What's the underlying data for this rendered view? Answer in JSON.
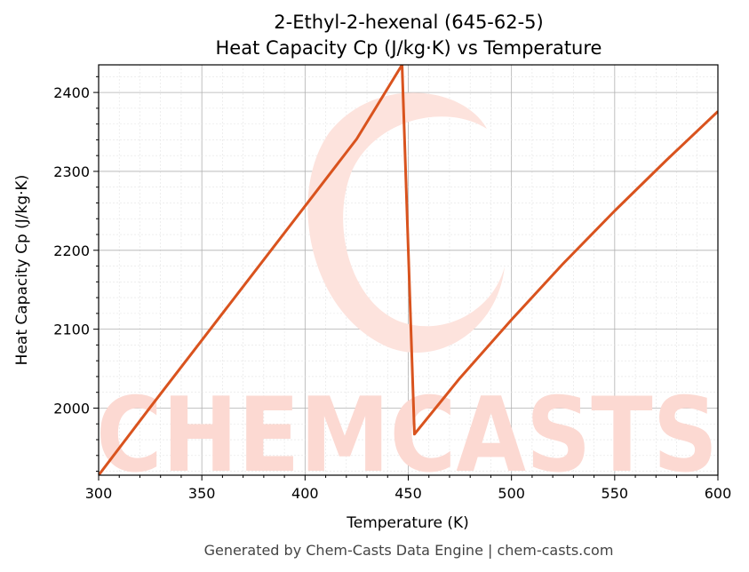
{
  "chart_data": {
    "type": "line",
    "title_line1": "2-Ethyl-2-hexenal (645-62-5)",
    "title_line2": "Heat Capacity Cp (J/kg·K) vs Temperature",
    "xlabel": "Temperature (K)",
    "ylabel": "Heat Capacity Cp (J/kg·K)",
    "xlim": [
      300,
      600
    ],
    "ylim": [
      1915,
      2435
    ],
    "xticks": [
      300,
      350,
      400,
      450,
      500,
      550,
      600
    ],
    "yticks": [
      2000,
      2100,
      2200,
      2300,
      2400
    ],
    "grid": true,
    "series": [
      {
        "color": "#d9531e",
        "points": [
          [
            300,
            1915
          ],
          [
            325,
            2001
          ],
          [
            350,
            2086
          ],
          [
            375,
            2171
          ],
          [
            400,
            2256
          ],
          [
            425,
            2341
          ],
          [
            447,
            2435
          ],
          [
            453,
            1967
          ],
          [
            475,
            2038
          ],
          [
            500,
            2112
          ],
          [
            525,
            2183
          ],
          [
            550,
            2250
          ],
          [
            575,
            2314
          ],
          [
            600,
            2376
          ]
        ]
      }
    ]
  },
  "watermark": {
    "text": "CHEMCASTS",
    "color": "#fcd9d2"
  },
  "footer": "Generated by Chem-Casts Data Engine | chem-casts.com"
}
